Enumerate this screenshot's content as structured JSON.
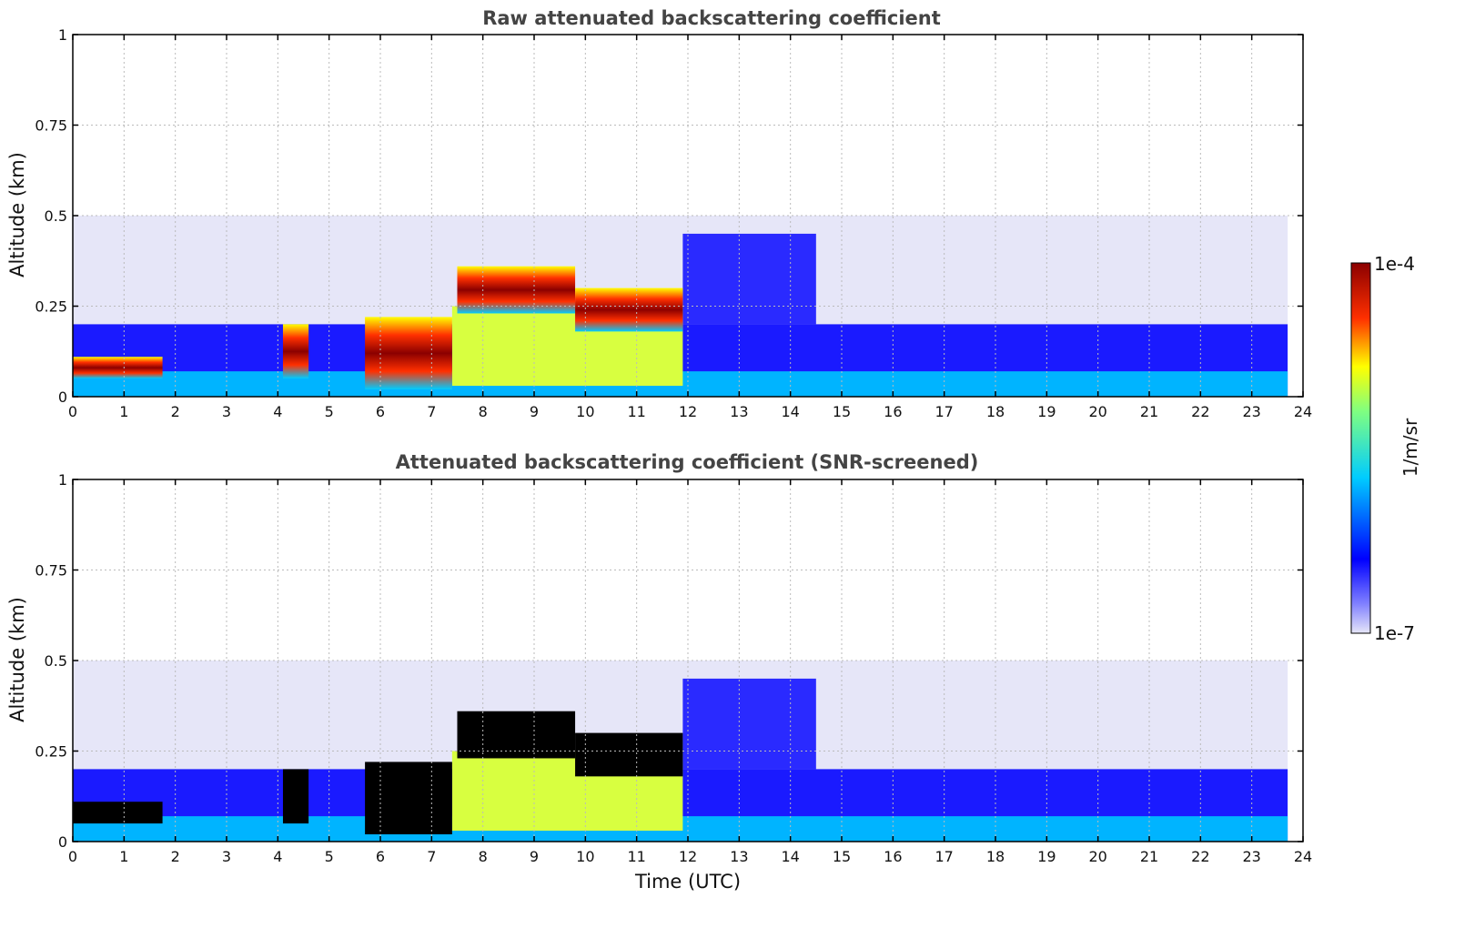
{
  "chart_data": [
    {
      "type": "heatmap",
      "title": "Raw attenuated backscattering coefficient",
      "xlabel": "",
      "ylabel": "Altitude (km)",
      "xlim": [
        0,
        24
      ],
      "ylim": [
        0,
        1
      ],
      "xticks": [
        "0",
        "1",
        "2",
        "3",
        "4",
        "5",
        "6",
        "7",
        "8",
        "9",
        "10",
        "11",
        "12",
        "13",
        "14",
        "15",
        "16",
        "17",
        "18",
        "19",
        "20",
        "21",
        "22",
        "23",
        "24"
      ],
      "yticks": [
        "0",
        "0.25",
        "0.5",
        "0.75",
        "1"
      ],
      "ytick_values": [
        0,
        0.25,
        0.5,
        0.75,
        1
      ],
      "data_end_time": 23.7,
      "grid": true,
      "saturated_color": "#8b0000",
      "layers": [
        {
          "t0": 0,
          "t1": 1.75,
          "z0": 0.05,
          "z1": 0.11,
          "level": 0.85
        },
        {
          "t0": 4.1,
          "t1": 4.6,
          "z0": 0.05,
          "z1": 0.2,
          "level": 0.85
        },
        {
          "t0": 5.7,
          "t1": 7.4,
          "z0": 0.02,
          "z1": 0.22,
          "level": 0.9
        },
        {
          "t0": 7.5,
          "t1": 9.8,
          "z0": 0.23,
          "z1": 0.36,
          "level": 0.95
        },
        {
          "t0": 9.8,
          "t1": 11.9,
          "z0": 0.18,
          "z1": 0.3,
          "level": 0.72
        }
      ]
    },
    {
      "type": "heatmap",
      "title": "Attenuated backscattering coefficient (SNR-screened)",
      "xlabel": "Time (UTC)",
      "ylabel": "Altitude (km)",
      "xlim": [
        0,
        24
      ],
      "ylim": [
        0,
        1
      ],
      "xticks": [
        "0",
        "1",
        "2",
        "3",
        "4",
        "5",
        "6",
        "7",
        "8",
        "9",
        "10",
        "11",
        "12",
        "13",
        "14",
        "15",
        "16",
        "17",
        "18",
        "19",
        "20",
        "21",
        "22",
        "23",
        "24"
      ],
      "yticks": [
        "0",
        "0.25",
        "0.5",
        "0.75",
        "1"
      ],
      "ytick_values": [
        0,
        0.25,
        0.5,
        0.75,
        1
      ],
      "data_end_time": 23.7,
      "grid": true,
      "saturated_color": "#000000",
      "layers": [
        {
          "t0": 0,
          "t1": 1.75,
          "z0": 0.05,
          "z1": 0.11,
          "level": 1.0
        },
        {
          "t0": 4.1,
          "t1": 4.6,
          "z0": 0.05,
          "z1": 0.2,
          "level": 1.0
        },
        {
          "t0": 5.7,
          "t1": 7.4,
          "z0": 0.02,
          "z1": 0.22,
          "level": 1.0
        },
        {
          "t0": 7.5,
          "t1": 9.8,
          "z0": 0.23,
          "z1": 0.36,
          "level": 1.0
        },
        {
          "t0": 9.8,
          "t1": 11.9,
          "z0": 0.18,
          "z1": 0.3,
          "level": 1.0
        }
      ]
    }
  ],
  "colorbar": {
    "label": "1/m/sr",
    "min_label": "1e-7",
    "max_label": "1e-4",
    "colormap": "jet",
    "scale": "log",
    "colors": [
      "#e6e6f8",
      "#0000ff",
      "#00ffff",
      "#ffff00",
      "#ff0000",
      "#8b0000"
    ]
  }
}
